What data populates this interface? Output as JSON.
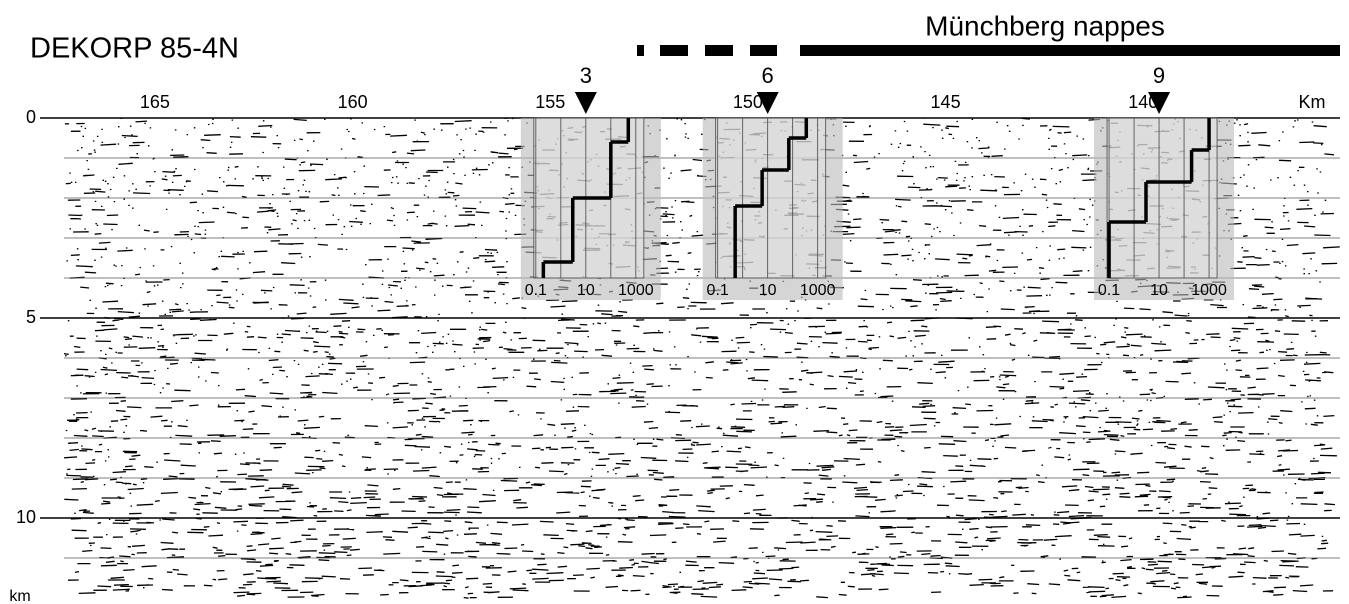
{
  "title": "DEKORP 85-4N",
  "nappe_label": "Münchberg nappes",
  "distance_axis": {
    "unit": "Km",
    "lim": [
      167.3,
      135.2
    ],
    "ticks": [
      165,
      160,
      155,
      150,
      145,
      140
    ]
  },
  "depth_axis": {
    "unit": "km",
    "lim": [
      0,
      12
    ],
    "ticks": [
      0,
      5,
      10
    ],
    "minor_ticks": [
      1,
      2,
      3,
      4,
      6,
      7,
      8,
      9,
      11
    ]
  },
  "stations": [
    {
      "label": "3",
      "km": 154.1,
      "inset": {
        "ylim": [
          0,
          4
        ],
        "xticks": [
          0.1,
          10,
          1000
        ],
        "xminor": [
          1,
          100
        ],
        "layers": [
          {
            "top": 0,
            "bottom": 0.6,
            "value": 500
          },
          {
            "top": 0.6,
            "bottom": 2.0,
            "value": 100
          },
          {
            "top": 2.0,
            "bottom": 3.6,
            "value": 3
          },
          {
            "top": 3.6,
            "bottom": 4,
            "value": 0.2
          }
        ]
      }
    },
    {
      "label": "6",
      "km": 149.5,
      "inset": {
        "ylim": [
          0,
          4
        ],
        "xticks": [
          0.1,
          10,
          1000
        ],
        "xminor": [
          1,
          100
        ],
        "layers": [
          {
            "top": 0,
            "bottom": 0.5,
            "value": 350
          },
          {
            "top": 0.5,
            "bottom": 1.3,
            "value": 70
          },
          {
            "top": 1.3,
            "bottom": 2.2,
            "value": 6
          },
          {
            "top": 2.2,
            "bottom": 4,
            "value": 0.5
          }
        ]
      }
    },
    {
      "label": "9",
      "km": 139.6,
      "inset": {
        "ylim": [
          0,
          4
        ],
        "xticks": [
          0.1,
          10,
          1000
        ],
        "xminor": [
          1,
          100
        ],
        "layers": [
          {
            "top": 0,
            "bottom": 0.8,
            "value": 1000
          },
          {
            "top": 0.8,
            "bottom": 1.6,
            "value": 200
          },
          {
            "top": 1.6,
            "bottom": 2.6,
            "value": 3
          },
          {
            "top": 2.6,
            "bottom": 4,
            "value": 0.1
          }
        ]
      }
    }
  ]
}
